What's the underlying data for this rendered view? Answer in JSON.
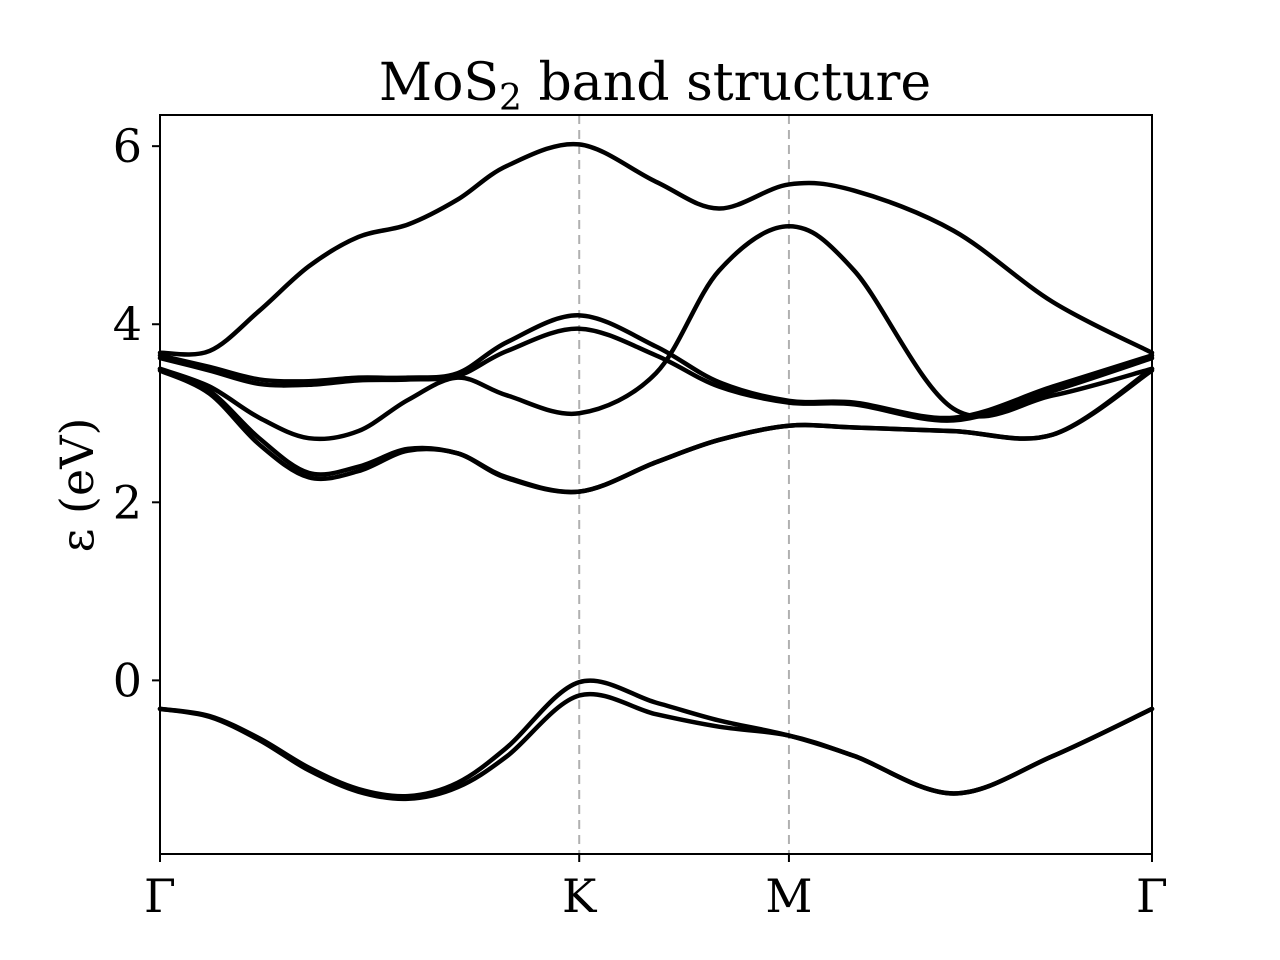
{
  "chart_data": {
    "type": "line",
    "title": {
      "main": "MoS",
      "sub": "2",
      "rest": " band structure"
    },
    "xlabel": "",
    "ylabel": "ε (eV)",
    "ylim": [
      -1.95,
      6.35
    ],
    "grid": false,
    "high_symmetry_points": [
      {
        "label": "Γ",
        "x": 0.0
      },
      {
        "label": "K",
        "x": 0.4226
      },
      {
        "label": "M",
        "x": 0.634
      },
      {
        "label": "Γ",
        "x": 1.0
      }
    ],
    "yticks": [
      0,
      2,
      4,
      6
    ],
    "series": [
      {
        "x": [
          0.0,
          0.05,
          0.1,
          0.15,
          0.2,
          0.25,
          0.3,
          0.35,
          0.4226,
          0.5,
          0.5634,
          0.634,
          0.7,
          0.8,
          0.9,
          1.0
        ],
        "values": [
          -0.32,
          -0.4,
          -0.65,
          -0.98,
          -1.22,
          -1.3,
          -1.15,
          -0.75,
          -0.02,
          -0.25,
          -0.45,
          -0.62,
          -0.85,
          -1.27,
          -0.85,
          -0.32
        ]
      },
      {
        "x": [
          0.0,
          0.05,
          0.1,
          0.15,
          0.2,
          0.25,
          0.3,
          0.35,
          0.4226,
          0.5,
          0.5634,
          0.634,
          0.7,
          0.8,
          0.9,
          1.0
        ],
        "values": [
          -0.32,
          -0.41,
          -0.67,
          -1.01,
          -1.25,
          -1.33,
          -1.2,
          -0.85,
          -0.17,
          -0.38,
          -0.52,
          -0.62,
          -0.85,
          -1.27,
          -0.85,
          -0.32
        ]
      },
      {
        "x": [
          0.0,
          0.05,
          0.1,
          0.15,
          0.2,
          0.25,
          0.3,
          0.35,
          0.4226,
          0.5,
          0.5634,
          0.634,
          0.7,
          0.8,
          0.9,
          1.0
        ],
        "values": [
          3.5,
          3.25,
          2.72,
          2.33,
          2.4,
          2.6,
          2.55,
          2.27,
          2.12,
          2.45,
          2.7,
          2.86,
          2.84,
          2.8,
          2.76,
          3.5
        ]
      },
      {
        "x": [
          0.0,
          0.05,
          0.1,
          0.15,
          0.2,
          0.25,
          0.3,
          0.35,
          0.4226,
          0.5,
          0.5634,
          0.634,
          0.7,
          0.8,
          0.9,
          1.0
        ],
        "values": [
          3.48,
          3.22,
          2.65,
          2.28,
          2.35,
          2.58,
          2.55,
          2.28,
          2.12,
          2.45,
          2.7,
          2.86,
          2.84,
          2.8,
          2.76,
          3.48
        ]
      },
      {
        "x": [
          0.0,
          0.05,
          0.1,
          0.15,
          0.2,
          0.25,
          0.3,
          0.35,
          0.4226,
          0.5,
          0.5634,
          0.634,
          0.7,
          0.8,
          0.9,
          1.0
        ],
        "values": [
          3.5,
          3.3,
          2.95,
          2.72,
          2.8,
          3.15,
          3.4,
          3.2,
          3.0,
          3.45,
          4.6,
          5.1,
          4.6,
          3.05,
          3.2,
          3.5
        ]
      },
      {
        "x": [
          0.0,
          0.05,
          0.1,
          0.15,
          0.2,
          0.25,
          0.3,
          0.35,
          0.4226,
          0.5,
          0.5634,
          0.634,
          0.7,
          0.8,
          0.9,
          1.0
        ],
        "values": [
          3.65,
          3.52,
          3.38,
          3.36,
          3.4,
          3.4,
          3.45,
          3.8,
          4.1,
          3.75,
          3.35,
          3.14,
          3.12,
          2.95,
          3.3,
          3.65
        ]
      },
      {
        "x": [
          0.0,
          0.05,
          0.1,
          0.15,
          0.2,
          0.25,
          0.3,
          0.35,
          0.4226,
          0.5,
          0.5634,
          0.634,
          0.7,
          0.8,
          0.9,
          1.0
        ],
        "values": [
          3.62,
          3.48,
          3.33,
          3.32,
          3.37,
          3.38,
          3.42,
          3.7,
          3.95,
          3.65,
          3.3,
          3.12,
          3.1,
          2.92,
          3.25,
          3.62
        ]
      },
      {
        "x": [
          0.0,
          0.05,
          0.1,
          0.15,
          0.2,
          0.25,
          0.3,
          0.35,
          0.4226,
          0.5,
          0.5634,
          0.634,
          0.7,
          0.8,
          0.9,
          1.0
        ],
        "values": [
          3.68,
          3.7,
          4.15,
          4.65,
          4.98,
          5.12,
          5.4,
          5.78,
          6.02,
          5.6,
          5.3,
          5.57,
          5.5,
          5.05,
          4.25,
          3.68
        ]
      }
    ]
  }
}
